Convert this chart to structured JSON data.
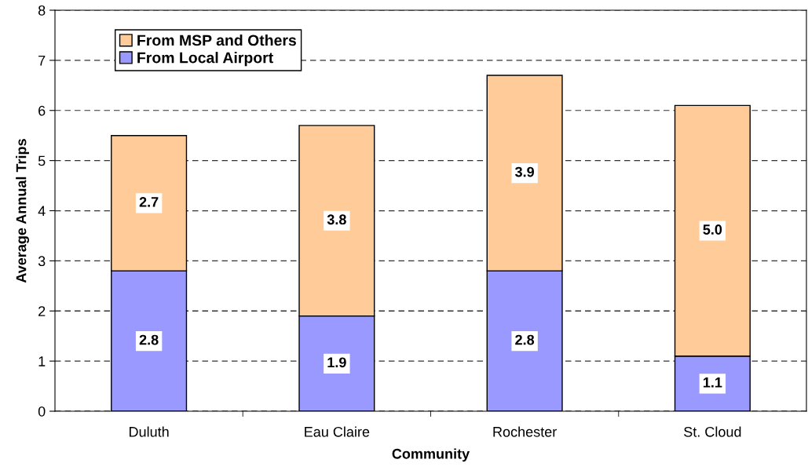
{
  "chart_data": {
    "type": "bar",
    "stacked": true,
    "xlabel": "Community",
    "ylabel": "Average Annual Trips",
    "categories": [
      "Duluth",
      "Eau Claire",
      "Rochester",
      "St. Cloud"
    ],
    "series": [
      {
        "name": "From Local Airport",
        "color": "#9999ff",
        "values": [
          2.8,
          1.9,
          2.8,
          1.1
        ],
        "value_labels": [
          "2.8",
          "1.9",
          "2.8",
          "1.1"
        ]
      },
      {
        "name": "From MSP and Others",
        "color": "#ffcc99",
        "values": [
          2.7,
          3.8,
          3.9,
          5.0
        ],
        "value_labels": [
          "2.7",
          "3.8",
          "3.9",
          "5.0"
        ]
      }
    ],
    "ylim": [
      0,
      8
    ],
    "yticks": [
      0,
      1,
      2,
      3,
      4,
      5,
      6,
      7,
      8
    ],
    "grid": "y",
    "legend": "top left"
  }
}
